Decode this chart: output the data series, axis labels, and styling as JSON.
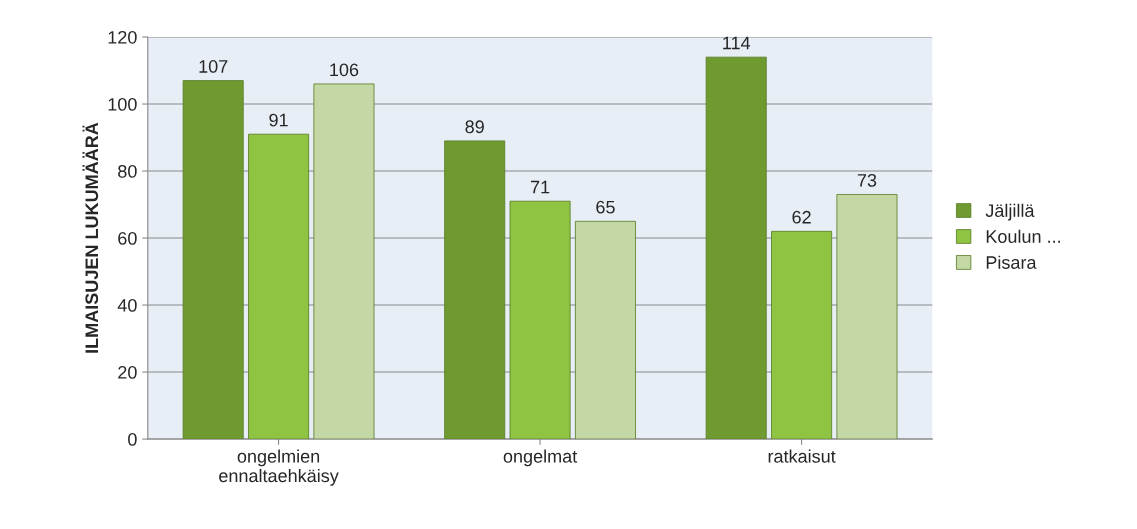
{
  "chart_data": {
    "type": "bar",
    "ylabel": "ILMAISUJEN LUKUMÄÄRÄ",
    "categories": [
      "ongelmien\nennaltaehkäisy",
      "ongelmat",
      "ratkaisut"
    ],
    "series": [
      {
        "name": "Jäljillä",
        "color": "#6e9a30",
        "values": [
          107,
          89,
          114
        ]
      },
      {
        "name": "Koulun ...",
        "color": "#8fc443",
        "values": [
          91,
          71,
          62
        ]
      },
      {
        "name": "Pisara",
        "color": "#c4d8a6",
        "values": [
          106,
          65,
          73
        ]
      }
    ],
    "ylim": [
      0,
      120
    ],
    "yticks": [
      0,
      20,
      40,
      60,
      80,
      100,
      120
    ],
    "grid": "y",
    "legend": "right",
    "data_labels": true
  }
}
